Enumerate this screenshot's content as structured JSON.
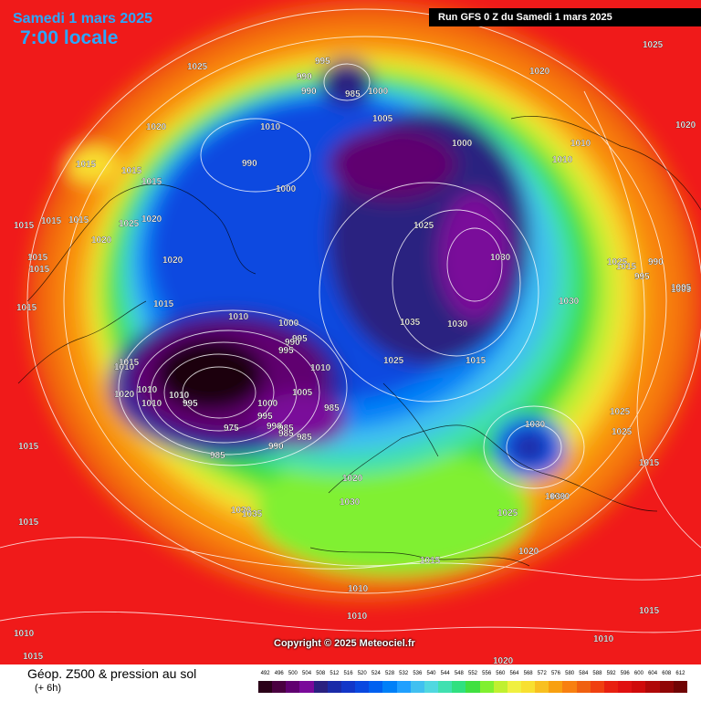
{
  "header": {
    "date": "Samedi 1 mars 2025",
    "time": "7:00 locale",
    "run": "Run GFS 0 Z du Samedi 1 mars 2025"
  },
  "copyright": "Copyright © 2025 Meteociel.fr",
  "footer": {
    "title": "Géop. Z500 & pression au sol",
    "subtitle": "(+ 6h)"
  },
  "scale": {
    "labels": [
      "492",
      "496",
      "500",
      "504",
      "508",
      "512",
      "516",
      "520",
      "524",
      "528",
      "532",
      "536",
      "540",
      "544",
      "548",
      "552",
      "556",
      "560",
      "564",
      "568",
      "572",
      "576",
      "580",
      "584",
      "588",
      "592",
      "596",
      "600",
      "604",
      "608",
      "612"
    ],
    "colors": [
      "#2a0018",
      "#4a0040",
      "#600070",
      "#7a0a9a",
      "#2a2080",
      "#1a2aa8",
      "#1236c8",
      "#0a48e0",
      "#0060f0",
      "#0080f8",
      "#20a0ff",
      "#40c0f0",
      "#50d8e0",
      "#40e0b0",
      "#30e080",
      "#40e040",
      "#80f030",
      "#c0f030",
      "#f0f040",
      "#f8e030",
      "#f8c020",
      "#f8a010",
      "#f88010",
      "#f06010",
      "#f04010",
      "#e82010",
      "#e01010",
      "#d00a0a",
      "#b00808",
      "#900606",
      "#700404"
    ]
  },
  "pressure_labels": [
    "995",
    "990",
    "990",
    "985",
    "1000",
    "1005",
    "1025",
    "1010",
    "1020",
    "1015",
    "1015",
    "1015",
    "1015",
    "1015",
    "1025",
    "1020",
    "1020",
    "1015",
    "1015",
    "1015",
    "1015",
    "1015",
    "1020",
    "1020",
    "1025",
    "990",
    "1000",
    "1000",
    "1025",
    "1030",
    "1030",
    "1035",
    "1030",
    "1025",
    "1015",
    "1030",
    "1025",
    "990",
    "995",
    "1005",
    "1010",
    "1000",
    "995",
    "990",
    "995",
    "1010",
    "1005",
    "1010",
    "1010",
    "1000",
    "995",
    "990",
    "985",
    "975",
    "985",
    "990",
    "985",
    "985",
    "985",
    "1020",
    "1030",
    "1025",
    "1030",
    "1030",
    "1015",
    "1025",
    "1025",
    "1020",
    "1015",
    "1010",
    "1015",
    "1010",
    "1030",
    "1035",
    "1015",
    "1015",
    "1010",
    "1020",
    "1020",
    "1010",
    "1015",
    "1015",
    "1005",
    "1020",
    "1010",
    "1010",
    "1015",
    "1010",
    "1010",
    "995"
  ]
}
